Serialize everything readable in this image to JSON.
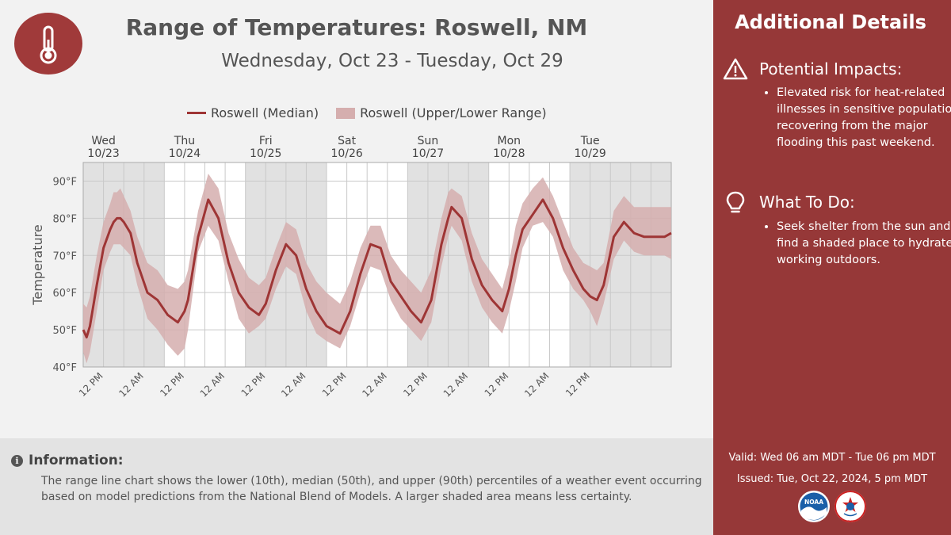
{
  "header": {
    "title": "Range of Temperatures:  Roswell, NM",
    "subtitle": "Wednesday, Oct 23 - Tuesday, Oct 29"
  },
  "legend": {
    "median": "Roswell (Median)",
    "range": "Roswell (Upper/Lower Range)"
  },
  "chart_data": {
    "type": "line",
    "ylabel": "Temperature",
    "ylim": [
      40,
      95
    ],
    "yticks": [
      40,
      50,
      60,
      70,
      80,
      90
    ],
    "ytick_labels": [
      "40°F",
      "50°F",
      "60°F",
      "70°F",
      "80°F",
      "90°F"
    ],
    "xlim_hours": [
      -6,
      168
    ],
    "days": [
      {
        "name": "Wed",
        "date": "10/23"
      },
      {
        "name": "Thu",
        "date": "10/24"
      },
      {
        "name": "Fri",
        "date": "10/25"
      },
      {
        "name": "Sat",
        "date": "10/26"
      },
      {
        "name": "Sun",
        "date": "10/27"
      },
      {
        "name": "Mon",
        "date": "10/28"
      },
      {
        "name": "Tue",
        "date": "10/29"
      }
    ],
    "xtick_labels": [
      "12 PM",
      "12 AM",
      "12 PM",
      "12 AM",
      "12 PM",
      "12 AM",
      "12 PM",
      "12 AM",
      "12 PM",
      "12 AM",
      "12 PM",
      "12 AM",
      "12 PM"
    ],
    "colors": {
      "median": "#9e3535",
      "range": "#d5aeae",
      "shade": "#e1e1e1"
    },
    "series": [
      {
        "name": "Roswell (Median)",
        "x": [
          -6,
          -5,
          -4,
          -2,
          0,
          2,
          3,
          4,
          5,
          6,
          8,
          10,
          13,
          16,
          19,
          22,
          24,
          25,
          28,
          31,
          34,
          37,
          40,
          43,
          46,
          48,
          51,
          54,
          57,
          60,
          63,
          66,
          70,
          73,
          76,
          79,
          82,
          85,
          88,
          91,
          94,
          97,
          98,
          100,
          102,
          103,
          106,
          109,
          112,
          115,
          118,
          120,
          122,
          124,
          127,
          130,
          133,
          136,
          139,
          142,
          144,
          146,
          148,
          151,
          154,
          157,
          160,
          163,
          166,
          168
        ],
        "values": [
          50,
          48,
          51,
          62,
          72,
          77,
          79,
          80,
          80,
          79,
          76,
          68,
          60,
          58,
          54,
          52,
          55,
          58,
          75,
          85,
          80,
          68,
          60,
          56,
          54,
          57,
          66,
          73,
          70,
          61,
          55,
          51,
          49,
          55,
          65,
          73,
          72,
          63,
          59,
          55,
          52,
          58,
          63,
          73,
          80,
          83,
          80,
          69,
          62,
          58,
          55,
          61,
          70,
          77,
          81,
          85,
          80,
          72,
          66,
          61,
          59,
          58,
          62,
          75,
          79,
          76,
          75,
          75,
          75,
          76
        ]
      },
      {
        "name": "Roswell (Upper/Lower Range)",
        "x": [
          -6,
          -5,
          -4,
          -2,
          0,
          2,
          3,
          4,
          5,
          6,
          8,
          10,
          13,
          16,
          19,
          22,
          24,
          25,
          28,
          31,
          34,
          37,
          40,
          43,
          46,
          48,
          51,
          54,
          57,
          60,
          63,
          66,
          70,
          73,
          76,
          79,
          82,
          85,
          88,
          91,
          94,
          97,
          98,
          100,
          102,
          103,
          106,
          109,
          112,
          115,
          118,
          120,
          122,
          124,
          127,
          130,
          133,
          136,
          139,
          142,
          144,
          146,
          148,
          151,
          154,
          157,
          160,
          163,
          166,
          168
        ],
        "upper": [
          57,
          56,
          59,
          70,
          79,
          84,
          87,
          87,
          88,
          86,
          82,
          75,
          68,
          66,
          62,
          61,
          63,
          66,
          82,
          92,
          88,
          76,
          69,
          64,
          62,
          64,
          72,
          79,
          77,
          68,
          63,
          60,
          57,
          63,
          72,
          78,
          78,
          70,
          66,
          63,
          60,
          66,
          71,
          80,
          87,
          88,
          86,
          76,
          69,
          65,
          61,
          68,
          78,
          84,
          88,
          91,
          86,
          79,
          72,
          68,
          67,
          66,
          68,
          82,
          86,
          83,
          83,
          83,
          83,
          83
        ],
        "lower": [
          44,
          41,
          44,
          55,
          66,
          71,
          73,
          73,
          73,
          72,
          70,
          62,
          53,
          50,
          46,
          43,
          45,
          50,
          71,
          78,
          74,
          63,
          53,
          49,
          51,
          53,
          61,
          67,
          65,
          55,
          49,
          47,
          45,
          51,
          60,
          67,
          66,
          58,
          53,
          50,
          47,
          52,
          57,
          67,
          75,
          78,
          74,
          63,
          56,
          52,
          49,
          55,
          63,
          72,
          78,
          79,
          75,
          66,
          61,
          58,
          55,
          51,
          57,
          69,
          74,
          71,
          70,
          70,
          70,
          69
        ]
      }
    ]
  },
  "info": {
    "heading": "Information:",
    "text": "The range line chart shows the lower (10th), median (50th), and upper (90th) percentiles of a weather event occurring based on model predictions from the National Blend of Models. A larger shaded area means less certainty."
  },
  "panel": {
    "title": "Additional Details",
    "impacts_heading": "Potential Impacts:",
    "impacts_items": [
      "Elevated risk for heat-related illnesses in sensitive populations recovering from the major flooding this past weekend."
    ],
    "todo_heading": "What To Do:",
    "todo_items": [
      "Seek shelter from the sun and find a shaded place to hydrate if working outdoors."
    ],
    "valid": "Valid: Wed 06 am MDT - Tue 06 pm MDT",
    "issued": "Issued: Tue, Oct 22, 2024, 5 pm MDT"
  },
  "logos": {
    "noaa_text": "NOAA",
    "nws_text": "NATIONAL WEATHER SERVICE"
  }
}
